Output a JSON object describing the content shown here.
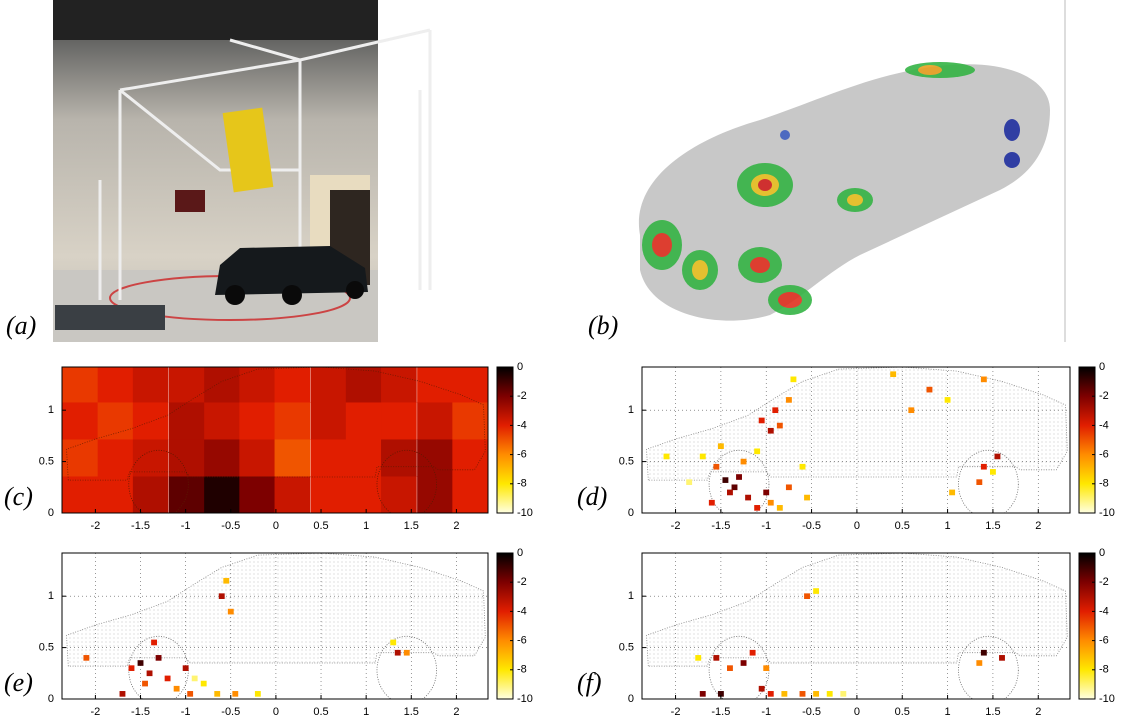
{
  "images": [
    {
      "label": "(a)"
    },
    {
      "label": "(b)"
    }
  ],
  "chart_data": [
    {
      "type": "heatmap",
      "label": "(c)",
      "xlim": [
        -2.37,
        2.35
      ],
      "ylim": [
        0,
        1.42
      ],
      "xticks": [
        -2,
        -1.5,
        -1,
        -0.5,
        0,
        0.5,
        1,
        1.5,
        2
      ],
      "yticks": [
        0,
        0.5,
        1
      ],
      "grid": false,
      "clim": [
        -10,
        0
      ],
      "cticks": [
        0,
        -2,
        -4,
        -6,
        -8,
        -10
      ],
      "x": [
        -2.17,
        -1.78,
        -1.39,
        -0.99,
        -0.6,
        -0.21,
        0.18,
        0.58,
        0.97,
        1.36,
        1.76,
        2.15
      ],
      "y": [
        0.18,
        0.54,
        0.9,
        1.26
      ],
      "values": [
        [
          -4,
          -4,
          -3,
          -1.5,
          -0.5,
          -2,
          -3.5,
          -4,
          -4,
          -3.5,
          -2.5,
          -4
        ],
        [
          -4.5,
          -4,
          -3.5,
          -3,
          -2.5,
          -3.5,
          -5,
          -4,
          -4,
          -3,
          -2.5,
          -4
        ],
        [
          -4,
          -4.5,
          -4,
          -3,
          -3.5,
          -4,
          -4.5,
          -3.5,
          -4,
          -4,
          -3.5,
          -4.5
        ],
        [
          -4.5,
          -4,
          -3.5,
          -3.5,
          -3,
          -3.5,
          -4,
          -3.5,
          -3,
          -3.5,
          -4,
          -4
        ]
      ]
    },
    {
      "type": "sparse",
      "label": "(d)",
      "xlim": [
        -2.37,
        2.35
      ],
      "ylim": [
        0,
        1.42
      ],
      "xticks": [
        -2,
        -1.5,
        -1,
        -0.5,
        0,
        0.5,
        1,
        1.5,
        2
      ],
      "yticks": [
        0,
        0.5,
        1
      ],
      "grid": true,
      "clim": [
        -10,
        0
      ],
      "cticks": [
        0,
        -2,
        -4,
        -6,
        -8,
        -10
      ],
      "x": [
        -1.45,
        -1.35,
        -1.3,
        -1.4,
        -1.55,
        -1.6,
        -1.2,
        -1.1,
        -1.0,
        -0.95,
        -0.85,
        -0.75,
        -1.7,
        -1.5,
        -1.25,
        -1.1,
        -1.05,
        -0.95,
        -0.85,
        -0.9,
        -0.75,
        -0.6,
        -0.55,
        -1.85,
        -2.1,
        0.6,
        0.4,
        0.8,
        1.0,
        1.4,
        1.4,
        1.35,
        1.05,
        1.5,
        1.55,
        -0.7
      ],
      "y": [
        0.32,
        0.25,
        0.35,
        0.2,
        0.45,
        0.1,
        0.15,
        0.05,
        0.2,
        0.1,
        0.05,
        0.25,
        0.55,
        0.65,
        0.5,
        0.6,
        0.9,
        0.8,
        0.85,
        1.0,
        1.1,
        0.45,
        0.15,
        0.3,
        0.55,
        1.0,
        1.35,
        1.2,
        1.1,
        1.3,
        0.45,
        0.3,
        0.2,
        0.4,
        0.55,
        1.3
      ],
      "values": [
        -1,
        -1.5,
        -2,
        -3,
        -5,
        -4,
        -3,
        -4,
        -2,
        -6,
        -7,
        -5,
        -8,
        -7,
        -6,
        -8,
        -4,
        -3,
        -5,
        -4,
        -6,
        -8,
        -7,
        -9,
        -8,
        -6,
        -7,
        -5,
        -8,
        -6,
        -4,
        -5,
        -7,
        -8,
        -3,
        -8
      ]
    },
    {
      "type": "sparse",
      "label": "(e)",
      "xlim": [
        -2.37,
        2.35
      ],
      "ylim": [
        0,
        1.42
      ],
      "xticks": [
        -2,
        -1.5,
        -1,
        -0.5,
        0,
        0.5,
        1,
        1.5,
        2
      ],
      "yticks": [
        0,
        0.5,
        1
      ],
      "grid": true,
      "clim": [
        -10,
        0
      ],
      "cticks": [
        0,
        -2,
        -4,
        -6,
        -8,
        -10
      ],
      "x": [
        -1.5,
        -1.4,
        -1.3,
        -1.2,
        -1.45,
        -1.6,
        -1.0,
        -1.1,
        -0.95,
        -0.8,
        -0.65,
        -1.7,
        -0.6,
        -0.55,
        -0.5,
        -2.1,
        -0.45,
        -0.2,
        1.35,
        1.45,
        1.3,
        -1.35,
        -0.9
      ],
      "y": [
        0.35,
        0.25,
        0.4,
        0.2,
        0.15,
        0.3,
        0.3,
        0.1,
        0.05,
        0.15,
        0.05,
        0.05,
        1.0,
        1.15,
        0.85,
        0.4,
        0.05,
        0.05,
        0.45,
        0.45,
        0.55,
        0.55,
        0.2
      ],
      "values": [
        -1,
        -3,
        -2,
        -4,
        -5,
        -4,
        -3,
        -6,
        -5,
        -8,
        -7,
        -3,
        -3,
        -7,
        -6,
        -5,
        -6,
        -8,
        -3,
        -6,
        -8,
        -4,
        -9
      ]
    },
    {
      "type": "sparse",
      "label": "(f)",
      "xlim": [
        -2.37,
        2.35
      ],
      "ylim": [
        0,
        1.42
      ],
      "xticks": [
        -2,
        -1.5,
        -1,
        -0.5,
        0,
        0.5,
        1,
        1.5,
        2
      ],
      "yticks": [
        0,
        0.5,
        1
      ],
      "grid": true,
      "clim": [
        -10,
        0
      ],
      "cticks": [
        0,
        -2,
        -4,
        -6,
        -8,
        -10
      ],
      "x": [
        -1.7,
        -1.55,
        -1.4,
        -1.25,
        -1.15,
        -1.5,
        -1.0,
        -1.05,
        -0.95,
        -0.8,
        -0.6,
        -0.45,
        -0.3,
        -0.55,
        -0.45,
        1.4,
        1.6,
        1.35,
        -1.75,
        -0.15
      ],
      "y": [
        0.05,
        0.4,
        0.3,
        0.35,
        0.45,
        0.05,
        0.3,
        0.1,
        0.05,
        0.05,
        0.05,
        0.05,
        0.05,
        1.0,
        1.05,
        0.45,
        0.4,
        0.35,
        0.4,
        0.05
      ],
      "values": [
        -2,
        -3,
        -5,
        -2,
        -4,
        -1,
        -6,
        -3,
        -4,
        -7,
        -5,
        -7,
        -8,
        -5,
        -8,
        -1,
        -3,
        -6,
        -8,
        -9
      ]
    }
  ]
}
